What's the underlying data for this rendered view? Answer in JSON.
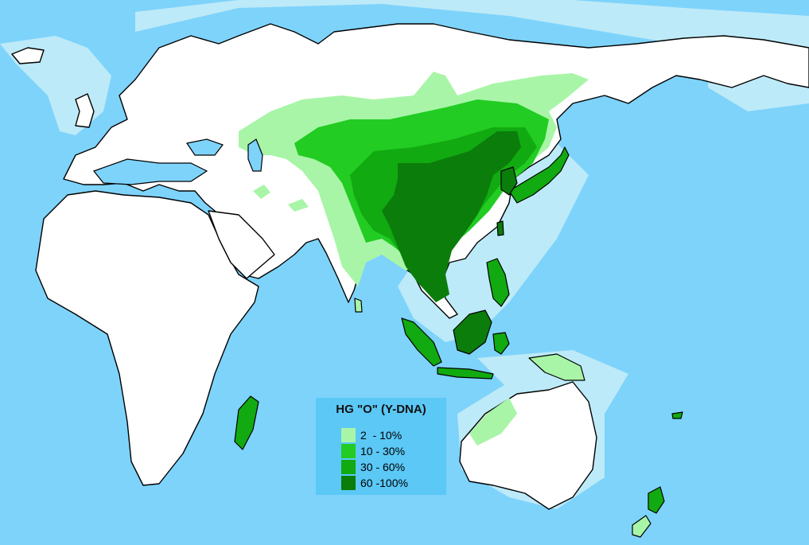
{
  "legend": {
    "title": "HG \"O\" (Y-DNA)",
    "items": [
      {
        "label": "2  - 10%",
        "color": "#a8f5a8"
      },
      {
        "label": "10 - 30%",
        "color": "#22cc22"
      },
      {
        "label": "30 - 60%",
        "color": "#11aa11"
      },
      {
        "label": "60 -100%",
        "color": "#0b7d0b"
      }
    ]
  },
  "colors": {
    "ocean": "#7ed3fb",
    "shelf": "#bdeaf8",
    "land": "#ffffff",
    "legend_bg": "#5bc8f6"
  }
}
